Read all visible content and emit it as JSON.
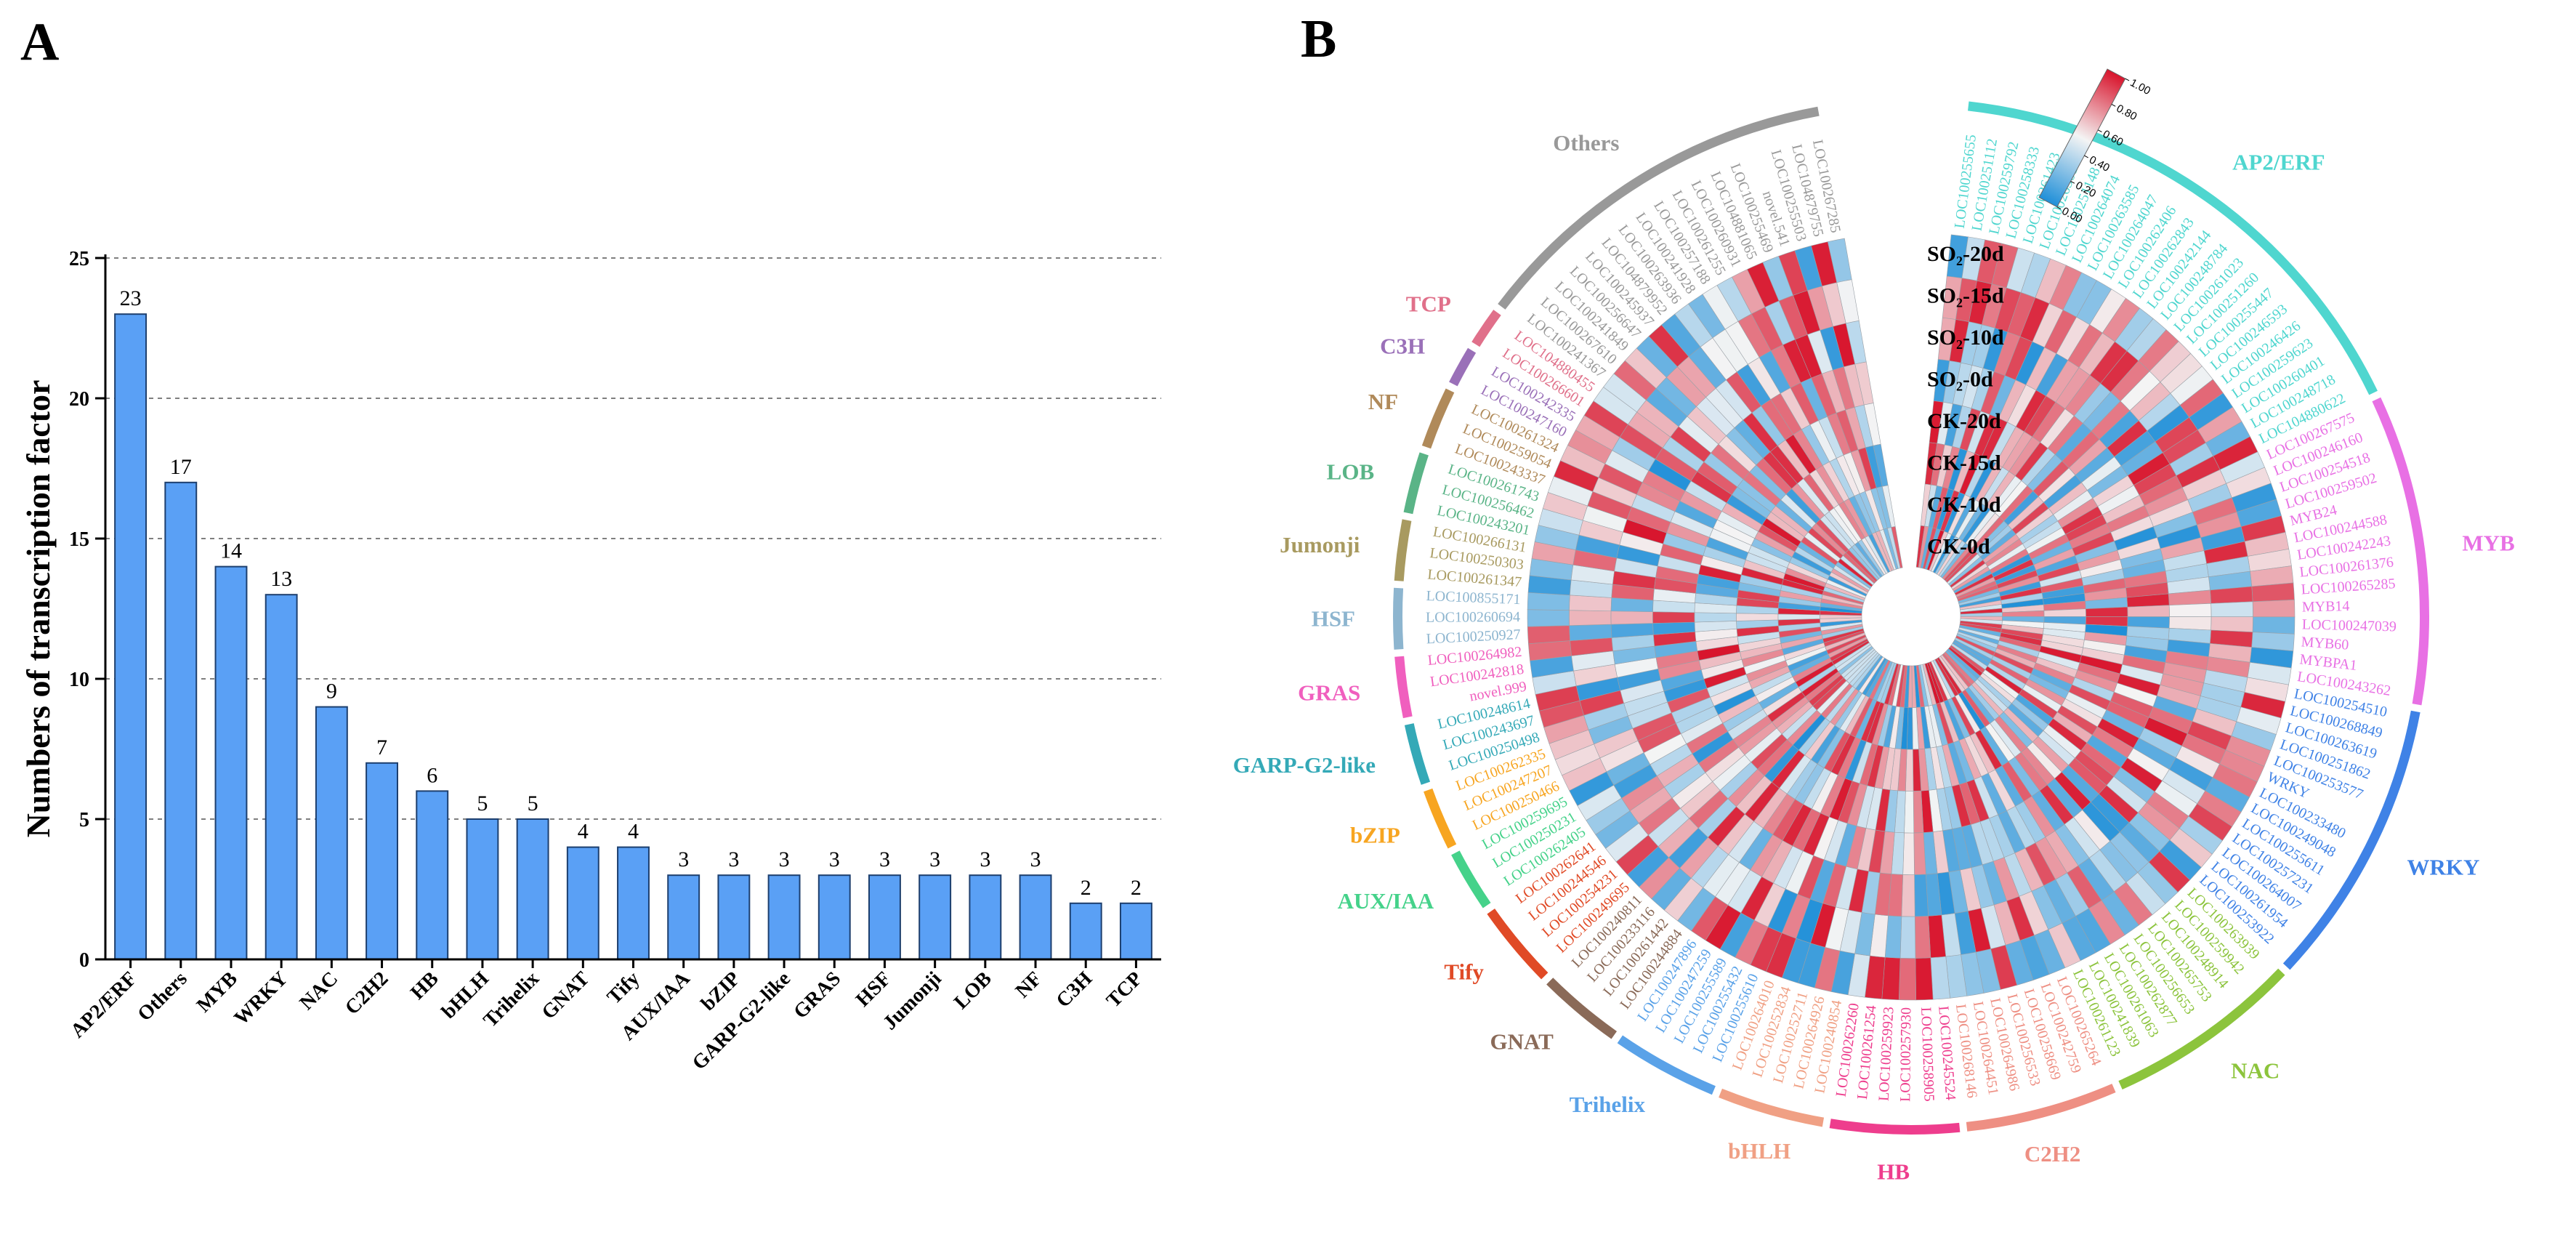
{
  "panels": {
    "a": "A",
    "b": "B"
  },
  "chart_data": [
    {
      "type": "bar",
      "panel": "A",
      "ylabel": "Numbers of transcription factor",
      "ylim": [
        0,
        25
      ],
      "yticks": [
        0,
        5,
        10,
        15,
        20,
        25
      ],
      "ytick_labels": [
        "0",
        "5",
        "10",
        "15",
        "20",
        "25"
      ],
      "categories": [
        "AP2/ERF",
        "Others",
        "MYB",
        "WRKY",
        "NAC",
        "C2H2",
        "HB",
        "bHLH",
        "Trihelix",
        "GNAT",
        "Tify",
        "AUX/IAA",
        "bZIP",
        "GARP-G2-like",
        "GRAS",
        "HSF",
        "Jumonji",
        "LOB",
        "NF",
        "C3H",
        "TCP"
      ],
      "values": [
        23,
        17,
        14,
        13,
        9,
        7,
        6,
        5,
        5,
        4,
        4,
        3,
        3,
        3,
        3,
        3,
        3,
        3,
        3,
        2,
        2
      ],
      "value_labels": [
        "23",
        "17",
        "14",
        "13",
        "9",
        "7",
        "6",
        "5",
        "5",
        "4",
        "4",
        "3",
        "3",
        "3",
        "3",
        "3",
        "3",
        "3",
        "3",
        "2",
        "2"
      ],
      "grid": "horizontal dashed",
      "bar_color": "#5aa0f5"
    },
    {
      "type": "heatmap",
      "panel": "B",
      "layout": "circular",
      "rings": [
        "SO₂-20d",
        "SO₂-15d",
        "SO₂-10d",
        "SO₂-0d",
        "CK-20d",
        "CK-15d",
        "CK-10d",
        "CK-0d"
      ],
      "colorbar": {
        "min": 0,
        "max": 1,
        "ticks": [
          "1.00",
          "0.80",
          "0.60",
          "0.40",
          "0.20",
          "0.00"
        ],
        "low_color": "#1f8fd8",
        "mid_color": "#f4f4f4",
        "high_color": "#d8142c"
      },
      "families": [
        {
          "name": "AP2/ERF",
          "color": "#4fd6cf",
          "genes": [
            "LOC100255655",
            "LOC100251112",
            "LOC100259792",
            "LOC100258333",
            "LOC100261423",
            "LOC100263017",
            "LOC100251148",
            "LOC100264074",
            "LOC100263585",
            "LOC100264047",
            "LOC100262406",
            "LOC100262843",
            "LOC100242144",
            "LOC100248784",
            "LOC100261023",
            "LOC100251260",
            "LOC100255447",
            "LOC100246593",
            "LOC100246426",
            "LOC100259623",
            "LOC100260401",
            "LOC100248718",
            "LOC104880622"
          ]
        },
        {
          "name": "MYB",
          "color": "#e870e4",
          "genes": [
            "LOC100267575",
            "LOC100246160",
            "LOC100254518",
            "LOC100259502",
            "MYB24",
            "LOC100244588",
            "LOC100242243",
            "LOC100261376",
            "LOC100265285",
            "MYB14",
            "LOC100247039",
            "MYB60",
            "MYBPA1",
            "LOC100243262"
          ]
        },
        {
          "name": "WRKY",
          "color": "#3f82e6",
          "genes": [
            "LOC100254510",
            "LOC100268849",
            "LOC100263619",
            "LOC100251862",
            "LOC100253577",
            "WRKY",
            "LOC100233480",
            "LOC100249048",
            "LOC100255611",
            "LOC100257231",
            "LOC100264007",
            "LOC100261954",
            "LOC100253922"
          ]
        },
        {
          "name": "NAC",
          "color": "#8cc43c",
          "genes": [
            "LOC100263939",
            "LOC100259942",
            "LOC100248914",
            "LOC100265753",
            "LOC100256653",
            "LOC100262877",
            "LOC100261063",
            "LOC100241839",
            "LOC100261123"
          ]
        },
        {
          "name": "C2H2",
          "color": "#ee8f83",
          "genes": [
            "LOC100265264",
            "LOC100242759",
            "LOC100258669",
            "LOC100256533",
            "LOC100264986",
            "LOC100264451",
            "LOC100268146"
          ]
        },
        {
          "name": "HB",
          "color": "#ee3d8d",
          "genes": [
            "LOC100245524",
            "LOC100258905",
            "LOC100257930",
            "LOC100259923",
            "LOC100261254",
            "LOC100262260"
          ]
        },
        {
          "name": "bHLH",
          "color": "#f0a084",
          "genes": [
            "LOC100240854",
            "LOC100264926",
            "LOC100252711",
            "LOC100252834",
            "LOC100264010"
          ]
        },
        {
          "name": "Trihelix",
          "color": "#5aa2e8",
          "genes": [
            "LOC100255610",
            "LOC100255432",
            "LOC100255589",
            "LOC100247259",
            "LOC100247896"
          ]
        },
        {
          "name": "GNAT",
          "color": "#8a6a58",
          "genes": [
            "LOC100244884",
            "LOC100261442",
            "LOC100233116",
            "LOC100240811"
          ]
        },
        {
          "name": "Tify",
          "color": "#e04a26",
          "genes": [
            "LOC100249695",
            "LOC100254231",
            "LOC100244546",
            "LOC100262641"
          ]
        },
        {
          "name": "AUX/IAA",
          "color": "#45d28a",
          "genes": [
            "LOC100262405",
            "LOC100250231",
            "LOC100259695"
          ]
        },
        {
          "name": "bZIP",
          "color": "#f7a521",
          "genes": [
            "LOC100250466",
            "LOC100247207",
            "LOC100262335"
          ]
        },
        {
          "name": "GARP-G2-like",
          "color": "#34a9b7",
          "genes": [
            "LOC100250498",
            "LOC100243697",
            "LOC100248614"
          ]
        },
        {
          "name": "GRAS",
          "color": "#f05fbe",
          "genes": [
            "novel.999",
            "LOC100242818",
            "LOC100264982"
          ]
        },
        {
          "name": "HSF",
          "color": "#8db5cf",
          "genes": [
            "LOC100250927",
            "LOC100260694",
            "LOC100855171"
          ]
        },
        {
          "name": "Jumonji",
          "color": "#a89a60",
          "genes": [
            "LOC100261347",
            "LOC100250303",
            "LOC100266131"
          ]
        },
        {
          "name": "LOB",
          "color": "#5ab487",
          "genes": [
            "LOC100243201",
            "LOC100256462",
            "LOC100261743"
          ]
        },
        {
          "name": "NF",
          "color": "#b08a5a",
          "genes": [
            "LOC100243337",
            "LOC100259054",
            "LOC100261324"
          ]
        },
        {
          "name": "C3H",
          "color": "#9a70b8",
          "genes": [
            "LOC100247160",
            "LOC100242335"
          ]
        },
        {
          "name": "TCP",
          "color": "#e0708a",
          "genes": [
            "LOC100266601",
            "LOC104880455"
          ]
        },
        {
          "name": "Others",
          "color": "#999999",
          "genes": [
            "LOC100241367",
            "LOC100267610",
            "LOC100241849",
            "LOC100256647",
            "LOC100245937",
            "LOC104879952",
            "LOC100263936",
            "LOC100241928",
            "LOC100257188",
            "LOC100261255",
            "LOC100260931",
            "LOC104881065",
            "LOC100255469",
            "novel.541",
            "LOC100255503",
            "LOC104879755",
            "LOC100267285"
          ]
        }
      ]
    }
  ]
}
